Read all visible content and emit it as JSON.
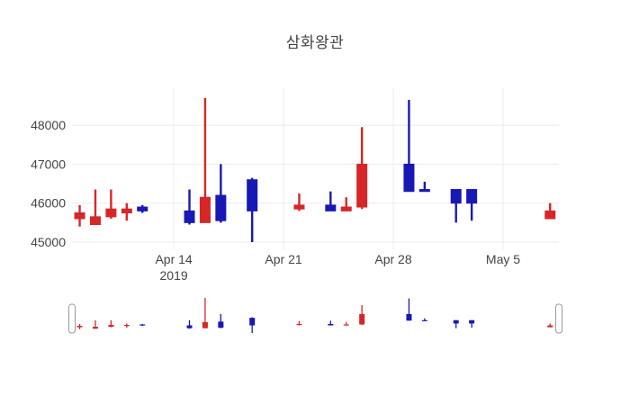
{
  "title": "삼화왕관",
  "colors": {
    "increasing": "#d62728",
    "decreasing": "#1818b4",
    "grid": "#ebebeb",
    "text": "#444444",
    "background": "#ffffff",
    "slider_handle_fill": "#ffffff",
    "slider_handle_border": "#999999"
  },
  "chart_data": {
    "type": "candlestick",
    "title": "삼화왕관",
    "legend_position": "none",
    "grid": true,
    "x_axis": {
      "tick_labels": [
        "Apr 14",
        "Apr 21",
        "Apr 28",
        "May 5"
      ],
      "first_tick_year": "2019",
      "tick_days": [
        6,
        13,
        20,
        27
      ],
      "range_days": [
        -0.49,
        30.56
      ]
    },
    "y_axis": {
      "ticks": [
        "45000",
        "46000",
        "47000",
        "48000"
      ],
      "tick_values": [
        45000,
        46000,
        47000,
        48000
      ],
      "range": [
        44815,
        48950
      ]
    },
    "rangeslider": {
      "enabled": true,
      "y_range": [
        44900,
        48800
      ]
    },
    "points": [
      {
        "date": "2019-04-08",
        "day": 0,
        "open": 45600,
        "high": 45950,
        "low": 45400,
        "close": 45750
      },
      {
        "date": "2019-04-09",
        "day": 1,
        "open": 45450,
        "high": 46350,
        "low": 45450,
        "close": 45650
      },
      {
        "date": "2019-04-10",
        "day": 2,
        "open": 45650,
        "high": 46350,
        "low": 45600,
        "close": 45850
      },
      {
        "date": "2019-04-11",
        "day": 3,
        "open": 45750,
        "high": 46000,
        "low": 45550,
        "close": 45850
      },
      {
        "date": "2019-04-12",
        "day": 4,
        "open": 45900,
        "high": 45950,
        "low": 45750,
        "close": 45800
      },
      {
        "date": "2019-04-15",
        "day": 7,
        "open": 45800,
        "high": 46350,
        "low": 45450,
        "close": 45500
      },
      {
        "date": "2019-04-16",
        "day": 8,
        "open": 45500,
        "high": 48700,
        "low": 45500,
        "close": 46150
      },
      {
        "date": "2019-04-17",
        "day": 9,
        "open": 46200,
        "high": 47000,
        "low": 45500,
        "close": 45550
      },
      {
        "date": "2019-04-19",
        "day": 11,
        "open": 46600,
        "high": 46650,
        "low": 45000,
        "close": 45800
      },
      {
        "date": "2019-04-22",
        "day": 14,
        "open": 45850,
        "high": 46250,
        "low": 45800,
        "close": 45950
      },
      {
        "date": "2019-04-24",
        "day": 16,
        "open": 45950,
        "high": 46300,
        "low": 45800,
        "close": 45800
      },
      {
        "date": "2019-04-25",
        "day": 17,
        "open": 45800,
        "high": 46150,
        "low": 45800,
        "close": 45900
      },
      {
        "date": "2019-04-26",
        "day": 18,
        "open": 45900,
        "high": 47950,
        "low": 45850,
        "close": 47000
      },
      {
        "date": "2019-04-29",
        "day": 21,
        "open": 47000,
        "high": 48650,
        "low": 46300,
        "close": 46300
      },
      {
        "date": "2019-04-30",
        "day": 22,
        "open": 46350,
        "high": 46550,
        "low": 46300,
        "close": 46300
      },
      {
        "date": "2019-05-02",
        "day": 24,
        "open": 46350,
        "high": 46350,
        "low": 45500,
        "close": 46000
      },
      {
        "date": "2019-05-03",
        "day": 25,
        "open": 46350,
        "high": 46350,
        "low": 45550,
        "close": 46000
      },
      {
        "date": "2019-05-08",
        "day": 30,
        "open": 45600,
        "high": 46000,
        "low": 45600,
        "close": 45800
      }
    ]
  }
}
